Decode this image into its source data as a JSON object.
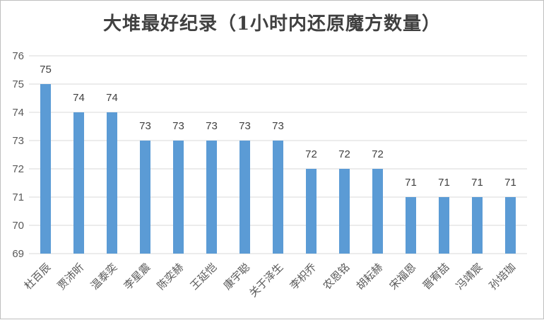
{
  "chart_data": {
    "type": "bar",
    "title": "大堆最好纪录（1小时内还原魔方数量）",
    "xlabel": "",
    "ylabel": "",
    "ylim": [
      69,
      76
    ],
    "yticks": [
      "69",
      "70",
      "71",
      "72",
      "73",
      "74",
      "75",
      "76"
    ],
    "grid": true,
    "legend": "none",
    "bar_color": "#5b9bd5",
    "categories": [
      "杜百辰",
      "贾沛昕",
      "温泰奕",
      "李星震",
      "陈奕赫",
      "王延恺",
      "康宇聪",
      "关于泽生",
      "李枳乔",
      "农恩铭",
      "胡耘赫",
      "宋福恩",
      "晋宥喆",
      "冯靖宸",
      "孙培珈"
    ],
    "values": [
      75,
      74,
      74,
      73,
      73,
      73,
      73,
      73,
      72,
      72,
      72,
      71,
      71,
      71,
      71
    ]
  }
}
